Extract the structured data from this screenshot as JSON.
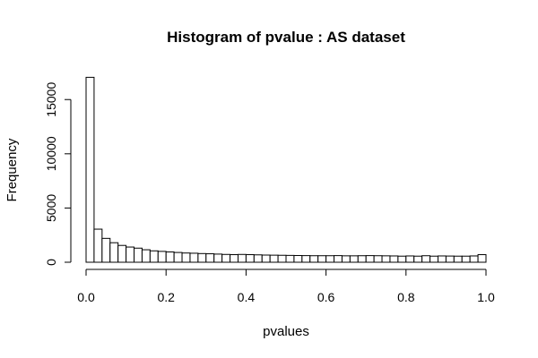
{
  "chart_data": {
    "type": "bar",
    "title": "Histogram of pvalue : AS dataset",
    "xlabel": "pvalues",
    "ylabel": "Frequency",
    "xlim": [
      0,
      1
    ],
    "ylim": [
      0,
      17000
    ],
    "bin_width": 0.02,
    "bin_starts": [
      0.0,
      0.02,
      0.04,
      0.06,
      0.08,
      0.1,
      0.12,
      0.14,
      0.16,
      0.18,
      0.2,
      0.22,
      0.24,
      0.26,
      0.28,
      0.3,
      0.32,
      0.34,
      0.36,
      0.38,
      0.4,
      0.42,
      0.44,
      0.46,
      0.48,
      0.5,
      0.52,
      0.54,
      0.56,
      0.58,
      0.6,
      0.62,
      0.64,
      0.66,
      0.68,
      0.7,
      0.72,
      0.74,
      0.76,
      0.78,
      0.8,
      0.82,
      0.84,
      0.86,
      0.88,
      0.9,
      0.92,
      0.94,
      0.96,
      0.98
    ],
    "values": [
      17050,
      3050,
      2200,
      1800,
      1550,
      1400,
      1300,
      1150,
      1050,
      1000,
      950,
      900,
      850,
      830,
      800,
      780,
      750,
      720,
      700,
      720,
      700,
      680,
      660,
      650,
      640,
      630,
      620,
      610,
      600,
      600,
      600,
      610,
      590,
      590,
      600,
      610,
      600,
      590,
      580,
      560,
      580,
      560,
      600,
      560,
      580,
      570,
      560,
      560,
      580,
      700
    ],
    "x_ticks": [
      "0.0",
      "0.2",
      "0.4",
      "0.6",
      "0.8",
      "1.0"
    ],
    "x_tick_values": [
      0,
      0.2,
      0.4,
      0.6,
      0.8,
      1.0
    ],
    "y_ticks": [
      "0",
      "5000",
      "10000",
      "15000"
    ],
    "y_tick_values": [
      0,
      5000,
      10000,
      15000
    ],
    "grid": false,
    "legend": "none"
  }
}
